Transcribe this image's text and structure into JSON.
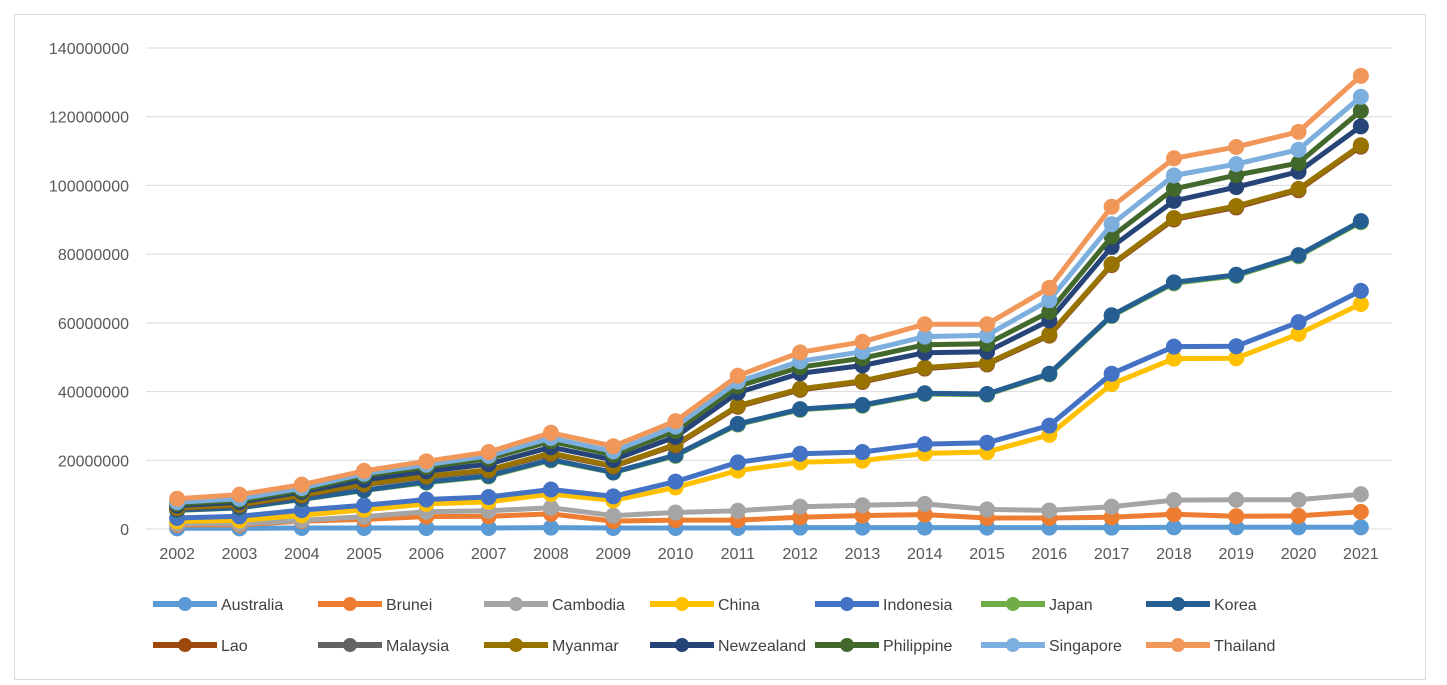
{
  "chart_data": {
    "type": "line",
    "title": "",
    "xlabel": "",
    "ylabel": "",
    "ylim": [
      0,
      140000000
    ],
    "yticks": [
      0,
      20000000,
      40000000,
      60000000,
      80000000,
      100000000,
      120000000,
      140000000
    ],
    "ytick_labels": [
      "0",
      "20000000",
      "40000000",
      "60000000",
      "80000000",
      "100000000",
      "120000000",
      "140000000"
    ],
    "categories": [
      "2002",
      "2003",
      "2004",
      "2005",
      "2006",
      "2007",
      "2008",
      "2009",
      "2010",
      "2011",
      "2012",
      "2013",
      "2014",
      "2015",
      "2016",
      "2017",
      "2018",
      "2019",
      "2020",
      "2021"
    ],
    "grid": "horizontal",
    "legend_position": "bottom",
    "stacked": true,
    "series": [
      {
        "name": "Australia",
        "color": "#5b9bd5",
        "values": [
          200000,
          200000,
          300000,
          300000,
          300000,
          300000,
          400000,
          300000,
          300000,
          300000,
          400000,
          400000,
          400000,
          400000,
          400000,
          400000,
          500000,
          500000,
          500000,
          500000
        ]
      },
      {
        "name": "Brunei",
        "color": "#ed7d31",
        "values": [
          1000000,
          1000000,
          2000000,
          2500000,
          3300000,
          3400000,
          4000000,
          2000000,
          2300000,
          2300000,
          3000000,
          3500000,
          3800000,
          2800000,
          2800000,
          3000000,
          3800000,
          3200000,
          3300000,
          4500000
        ]
      },
      {
        "name": "Cambodia",
        "color": "#a5a5a5",
        "values": [
          300000,
          300000,
          200000,
          800000,
          1400000,
          1600000,
          1800000,
          1600000,
          2200000,
          2700000,
          3100000,
          3000000,
          3100000,
          2500000,
          2200000,
          3100000,
          4100000,
          4800000,
          4700000,
          5100000
        ]
      },
      {
        "name": "China",
        "color": "#ffc000",
        "values": [
          700000,
          1000000,
          1500000,
          2000000,
          2300000,
          2600000,
          4000000,
          4400000,
          7300000,
          11700000,
          12900000,
          13000000,
          14700000,
          16700000,
          22000000,
          35700000,
          41200000,
          41200000,
          48300000,
          55400000
        ]
      },
      {
        "name": "Indonesia",
        "color": "#4472c4",
        "values": [
          1000000,
          1200000,
          1500000,
          1300000,
          1300000,
          1400000,
          1300000,
          1200000,
          1700000,
          2400000,
          2500000,
          2500000,
          2700000,
          2700000,
          2700000,
          3000000,
          3500000,
          3500000,
          3400000,
          3800000
        ]
      },
      {
        "name": "Japan",
        "color": "#70ad47",
        "values": [
          2200000,
          2400000,
          3100000,
          4300000,
          4900000,
          6000000,
          8500000,
          6900000,
          7500000,
          11000000,
          12800000,
          13500000,
          14600000,
          14000000,
          14900000,
          16800000,
          18400000,
          20500000,
          19200000,
          20000000
        ]
      },
      {
        "name": "Korea",
        "color": "#255e91",
        "values": [
          100000,
          100000,
          100000,
          100000,
          200000,
          200000,
          200000,
          100000,
          200000,
          200000,
          200000,
          200000,
          200000,
          200000,
          200000,
          200000,
          300000,
          300000,
          300000,
          300000
        ]
      },
      {
        "name": "Lao",
        "color": "#9e480e",
        "values": [
          500000,
          700000,
          1000000,
          1600000,
          1500000,
          1500000,
          1600000,
          1700000,
          2800000,
          5000000,
          5600000,
          6700000,
          7200000,
          8600000,
          11100000,
          14600000,
          18300000,
          19600000,
          18900000,
          21700000
        ]
      },
      {
        "name": "Malaysia",
        "color": "#636363",
        "values": [
          100000,
          100000,
          100000,
          100000,
          100000,
          100000,
          200000,
          100000,
          200000,
          200000,
          200000,
          200000,
          200000,
          200000,
          200000,
          200000,
          300000,
          300000,
          300000,
          300000
        ]
      },
      {
        "name": "Myanmar",
        "color": "#997300",
        "values": [
          100000,
          100000,
          100000,
          100000,
          100000,
          100000,
          100000,
          100000,
          100000,
          100000,
          100000,
          100000,
          100000,
          100000,
          100000,
          100000,
          100000,
          100000,
          100000,
          100000
        ]
      },
      {
        "name": "Newzealand",
        "color": "#264478",
        "values": [
          600000,
          700000,
          900000,
          1200000,
          1400000,
          1700000,
          1700000,
          1700000,
          2200000,
          3800000,
          4500000,
          4500000,
          4300000,
          3400000,
          4100000,
          5000000,
          5000000,
          5500000,
          5000000,
          5500000
        ]
      },
      {
        "name": "Philippine",
        "color": "#43682b",
        "values": [
          500000,
          500000,
          500000,
          1200000,
          1200000,
          1600000,
          1700000,
          1500000,
          1700000,
          1800000,
          1800000,
          2100000,
          2300000,
          2300000,
          2500000,
          3000000,
          3500000,
          3500000,
          2500000,
          4500000
        ]
      },
      {
        "name": "Singapore",
        "color": "#7cafdd",
        "values": [
          500000,
          500000,
          600000,
          600000,
          700000,
          800000,
          1000000,
          1000000,
          1300000,
          1400000,
          1700000,
          1900000,
          2400000,
          2500000,
          3400000,
          3600000,
          3900000,
          3200000,
          3900000,
          4100000
        ]
      },
      {
        "name": "Thailand",
        "color": "#f1975a",
        "values": [
          1000000,
          1200000,
          1000000,
          800000,
          1000000,
          1100000,
          1500000,
          1500000,
          1600000,
          1700000,
          2600000,
          2900000,
          3600000,
          3200000,
          3600000,
          5100000,
          5000000,
          5000000,
          5200000,
          6100000
        ]
      }
    ]
  }
}
